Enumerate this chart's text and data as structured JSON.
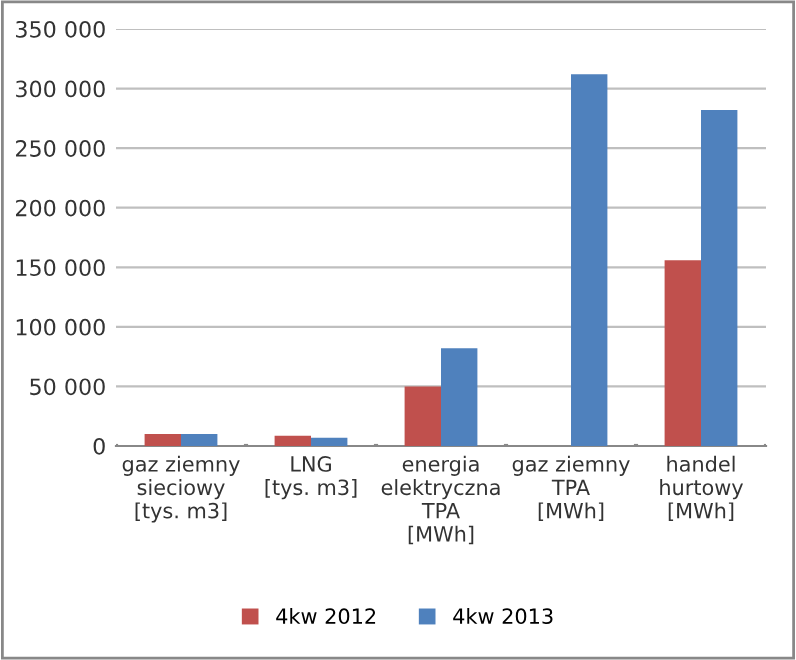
{
  "chart_data": {
    "type": "bar",
    "categories": [
      "gaz ziemny\nsieciowy\n[tys. m3]",
      "LNG\n[tys. m3]",
      "energia\nelektryczna\nTPA\n[MWh]",
      "gaz ziemny\nTPA\n[MWh]",
      "handel\nhurtowy\n[MWh]"
    ],
    "series": [
      {
        "name": "4kw 2012",
        "color": "#c0504d",
        "values": [
          10000,
          8500,
          50000,
          0,
          156000
        ]
      },
      {
        "name": "4kw 2013",
        "color": "#4f81bd",
        "values": [
          10000,
          7000,
          82000,
          312000,
          282000
        ]
      }
    ],
    "ylim": [
      0,
      350000
    ],
    "yticks": [
      {
        "value": 0,
        "label": "0"
      },
      {
        "value": 50000,
        "label": "50 000"
      },
      {
        "value": 100000,
        "label": "100 000"
      },
      {
        "value": 150000,
        "label": "150 000"
      },
      {
        "value": 200000,
        "label": "200 000"
      },
      {
        "value": 250000,
        "label": "250 000"
      },
      {
        "value": 300000,
        "label": "300 000"
      },
      {
        "value": 350000,
        "label": "350 000"
      }
    ],
    "grid": "y",
    "legend": "bottom"
  }
}
